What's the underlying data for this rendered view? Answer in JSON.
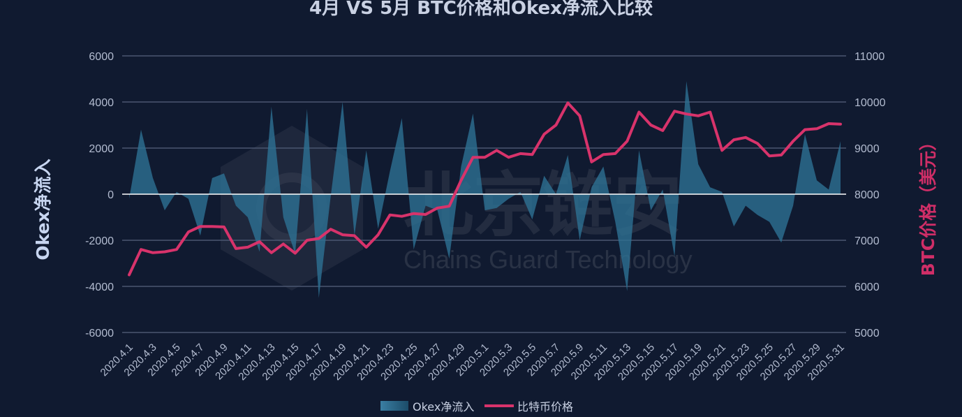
{
  "watermark": {
    "name": "北京链安",
    "sub": "Chains Guard Technology"
  },
  "chart_data": {
    "type": "line",
    "title": "4月 VS 5月 BTC价格和Okex净流入比较",
    "ylabel_left": "Okex净流入",
    "ylabel_right": "BTC价格（美元）",
    "ylim_left": [
      -6000,
      6000
    ],
    "yticks_left": [
      "-6000",
      "-4000",
      "-2000",
      "0",
      "2000",
      "4000",
      "6000"
    ],
    "ylim_right": [
      5000,
      11000
    ],
    "yticks_right": [
      "5000",
      "6000",
      "7000",
      "8000",
      "9000",
      "10000",
      "11000"
    ],
    "legend_position": "bottom",
    "categories": [
      "2020.4.1",
      "2020.4.2",
      "2020.4.3",
      "2020.4.4",
      "2020.4.5",
      "2020.4.6",
      "2020.4.7",
      "2020.4.8",
      "2020.4.9",
      "2020.4.10",
      "2020.4.11",
      "2020.4.12",
      "2020.4.13",
      "2020.4.14",
      "2020.4.15",
      "2020.4.16",
      "2020.4.17",
      "2020.4.18",
      "2020.4.19",
      "2020.4.20",
      "2020.4.21",
      "2020.4.22",
      "2020.4.23",
      "2020.4.24",
      "2020.4.25",
      "2020.4.26",
      "2020.4.27",
      "2020.4.28",
      "2020.4.29",
      "2020.4.30",
      "2020.5.1",
      "2020.5.2",
      "2020.5.3",
      "2020.5.4",
      "2020.5.5",
      "2020.5.6",
      "2020.5.7",
      "2020.5.8",
      "2020.5.9",
      "2020.5.10",
      "2020.5.11",
      "2020.5.12",
      "2020.5.13",
      "2020.5.14",
      "2020.5.15",
      "2020.5.16",
      "2020.5.17",
      "2020.5.18",
      "2020.5.19",
      "2020.5.20",
      "2020.5.21",
      "2020.5.22",
      "2020.5.23",
      "2020.5.24",
      "2020.5.25",
      "2020.5.26",
      "2020.5.27",
      "2020.5.28",
      "2020.5.29",
      "2020.5.30",
      "2020.5.31"
    ],
    "series": [
      {
        "name": "Okex净流入",
        "kind": "area",
        "axis": "left",
        "color": "#2d6f91",
        "values": [
          -200,
          2800,
          700,
          -700,
          100,
          -200,
          -1800,
          700,
          900,
          -500,
          -1000,
          -2500,
          3800,
          -1000,
          -2600,
          3700,
          -4500,
          -100,
          4000,
          -1800,
          1900,
          -1500,
          1000,
          3300,
          -2400,
          -500,
          -700,
          -2800,
          1200,
          3500,
          -700,
          -600,
          -200,
          100,
          -1100,
          800,
          0,
          1700,
          -2000,
          300,
          1200,
          -1200,
          -4200,
          1900,
          -700,
          200,
          -2700,
          4900,
          1300,
          300,
          100,
          -1400,
          -500,
          -900,
          -1200,
          -2100,
          -500,
          2600,
          600,
          200,
          2300
        ]
      },
      {
        "name": "比特币价格",
        "kind": "line",
        "axis": "right",
        "color": "#d8336b",
        "values": [
          6250,
          6800,
          6730,
          6750,
          6800,
          7180,
          7300,
          7300,
          7290,
          6820,
          6850,
          6970,
          6730,
          6920,
          6720,
          7000,
          7040,
          7240,
          7120,
          7100,
          6850,
          7120,
          7550,
          7520,
          7580,
          7560,
          7700,
          7740,
          8300,
          8800,
          8800,
          8950,
          8800,
          8880,
          8860,
          9300,
          9500,
          9980,
          9700,
          8700,
          8860,
          8880,
          9150,
          9780,
          9500,
          9380,
          9800,
          9740,
          9700,
          9780,
          8950,
          9180,
          9230,
          9100,
          8830,
          8850,
          9150,
          9400,
          9420,
          9530,
          9520
        ]
      }
    ]
  }
}
